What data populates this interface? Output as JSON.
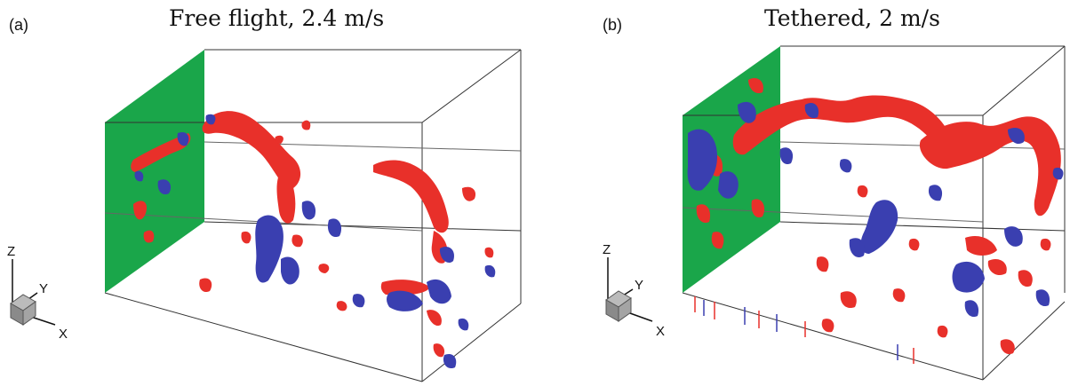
{
  "figure": {
    "panels": [
      {
        "label": "(a)",
        "title": "Free flight, 2.4 m/s",
        "axis_labels": {
          "z": "Z",
          "y": "Y",
          "x": "X"
        }
      },
      {
        "label": "(b)",
        "title": "Tethered, 2 m/s",
        "axis_labels": {
          "z": "Z",
          "y": "Y",
          "x": "X"
        }
      }
    ],
    "colors": {
      "positive_structure": "#e8302a",
      "negative_structure": "#3a3fb0",
      "plane": "#1aa64a",
      "box_edge": "#333333"
    }
  }
}
